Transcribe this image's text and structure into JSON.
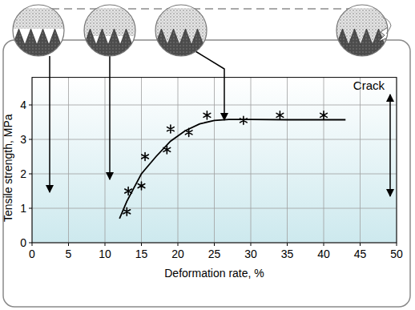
{
  "chart_data": {
    "type": "scatter",
    "x_label": "Deformation rate, %",
    "y_label": "Tensile strength, MPa",
    "xlim": [
      0,
      50
    ],
    "xticks": [
      0,
      5,
      10,
      15,
      20,
      25,
      30,
      35,
      40,
      45,
      50
    ],
    "ylim": [
      0,
      4.8
    ],
    "yticks": [
      0,
      1,
      2,
      3,
      4
    ],
    "grid": true,
    "series": [
      {
        "type": "scatter",
        "marker": "asterisk",
        "color": "#000000",
        "x": [
          13,
          13.2,
          15,
          15.5,
          18.5,
          19,
          21.5,
          24,
          29,
          34,
          40
        ],
        "values": [
          0.9,
          1.5,
          1.65,
          2.5,
          2.7,
          3.3,
          3.2,
          3.7,
          3.55,
          3.7,
          3.7
        ]
      },
      {
        "type": "line",
        "line_style": "solid",
        "color": "#000000",
        "x": [
          12,
          13,
          14,
          15,
          17,
          19,
          21,
          23,
          25,
          27,
          30,
          35,
          43
        ],
        "values": [
          0.7,
          1.2,
          1.6,
          2.0,
          2.5,
          2.95,
          3.25,
          3.45,
          3.55,
          3.58,
          3.58,
          3.57,
          3.57
        ]
      }
    ],
    "annotations": [
      {
        "text": "Crack"
      }
    ]
  }
}
